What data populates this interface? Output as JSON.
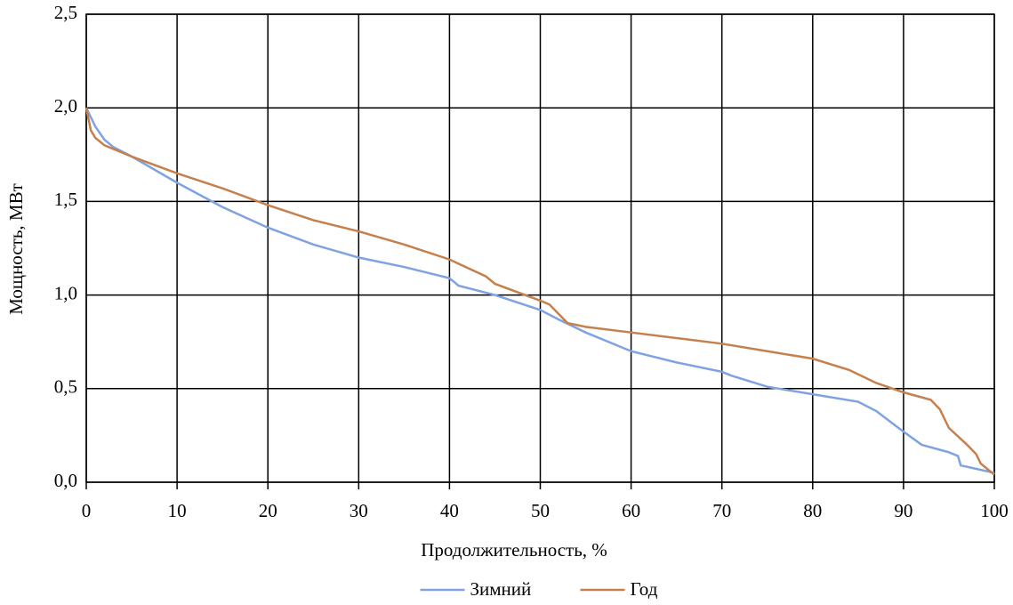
{
  "chart_data": {
    "type": "line",
    "x_label": "Продолжительность, %",
    "y_label": "Мощность, МВт",
    "xlim": [
      0,
      100
    ],
    "xticks": [
      0,
      10,
      20,
      30,
      40,
      50,
      60,
      70,
      80,
      90,
      100
    ],
    "ylim": [
      0,
      2.5
    ],
    "yticks": [
      {
        "value": 0,
        "label": "0,0"
      },
      {
        "value": 0.5,
        "label": "0,5"
      },
      {
        "value": 1,
        "label": "1,0"
      },
      {
        "value": 1.5,
        "label": "1,5"
      },
      {
        "value": 2,
        "label": "2,0"
      },
      {
        "value": 2.5,
        "label": "2,5"
      }
    ],
    "grid": true,
    "legend": "bottom",
    "series": [
      {
        "name": "Зимний",
        "color": "#7fa3e0",
        "x": [
          0,
          1,
          2,
          3,
          5,
          10,
          15,
          20,
          25,
          30,
          35,
          40,
          41,
          45,
          50,
          52,
          55,
          60,
          65,
          70,
          71,
          75,
          80,
          85,
          87,
          90,
          92,
          95,
          96,
          96.3,
          100
        ],
        "values": [
          2.0,
          1.9,
          1.83,
          1.79,
          1.74,
          1.6,
          1.47,
          1.36,
          1.27,
          1.2,
          1.15,
          1.09,
          1.05,
          1.0,
          0.92,
          0.87,
          0.8,
          0.7,
          0.64,
          0.59,
          0.57,
          0.51,
          0.47,
          0.43,
          0.38,
          0.27,
          0.2,
          0.16,
          0.14,
          0.09,
          0.05
        ]
      },
      {
        "name": "Год",
        "color": "#c4804d",
        "x": [
          0,
          0.5,
          1,
          2,
          5,
          10,
          15,
          20,
          25,
          30,
          35,
          40,
          44,
          45,
          50,
          51,
          53,
          55,
          60,
          65,
          70,
          75,
          80,
          84,
          87,
          90,
          93,
          94,
          95,
          97,
          98,
          98.5,
          100
        ],
        "values": [
          2.0,
          1.88,
          1.84,
          1.8,
          1.74,
          1.65,
          1.57,
          1.48,
          1.4,
          1.34,
          1.27,
          1.19,
          1.1,
          1.06,
          0.97,
          0.95,
          0.85,
          0.83,
          0.8,
          0.77,
          0.74,
          0.7,
          0.66,
          0.6,
          0.53,
          0.48,
          0.44,
          0.39,
          0.29,
          0.2,
          0.15,
          0.1,
          0.04
        ]
      }
    ]
  }
}
